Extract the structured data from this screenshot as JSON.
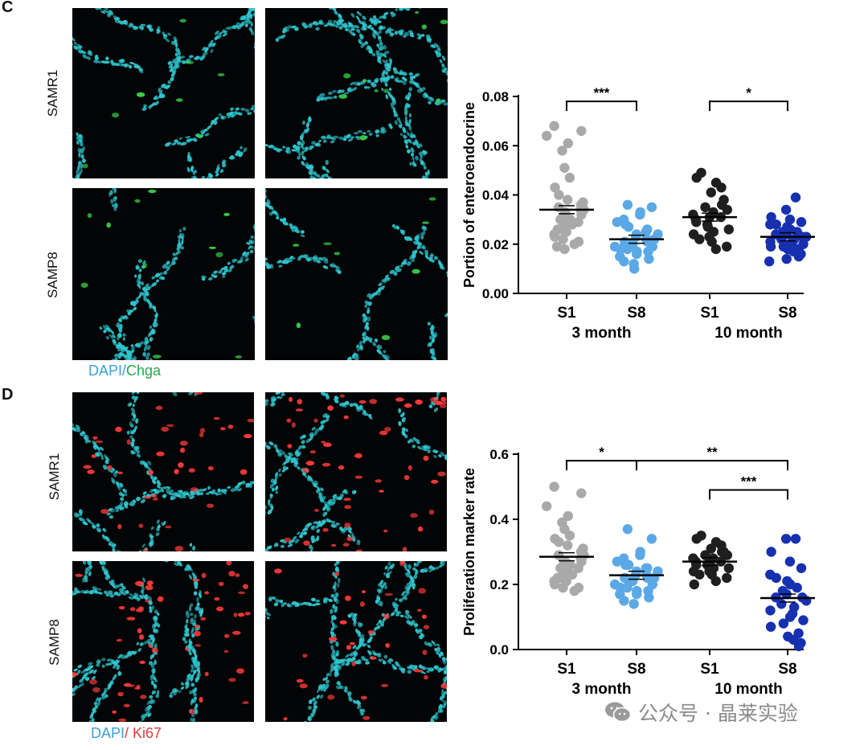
{
  "panels": {
    "c": {
      "letter": "C",
      "row_labels": [
        "SAMR1",
        "SAMP8"
      ],
      "stain_legend": {
        "dapi": "DAPI",
        "separator": "/",
        "marker": "Chga"
      }
    },
    "d": {
      "letter": "D",
      "row_labels": [
        "SAMR1",
        "SAMP8"
      ],
      "stain_legend": {
        "dapi": "DAPI",
        "separator": "/ ",
        "marker": "Ki67"
      }
    }
  },
  "colors": {
    "dapi": "#2fc6cf",
    "chga": "#39d24a",
    "ki67": "#ff3b3b",
    "S1_3month": "#a9a9a9",
    "S8_3month": "#5ba8e6",
    "S1_10month": "#1f1f1f",
    "S8_10month": "#1630b0"
  },
  "chart_data": [
    {
      "type": "scatter",
      "panel": "C",
      "ylabel": "Portion of enteroendocrine",
      "xlabel": "",
      "ylim": [
        0,
        0.08
      ],
      "yticks": [
        "0.00",
        "0.02",
        "0.04",
        "0.06",
        "0.08"
      ],
      "ytick_values": [
        0,
        0.02,
        0.04,
        0.06,
        0.08
      ],
      "categories": [
        "S1",
        "S8",
        "S1",
        "S8"
      ],
      "group_labels": [
        "3 month",
        "10 month"
      ],
      "series": [
        {
          "color": "#a9a9a9",
          "mean": 0.034,
          "values": [
            0.068,
            0.066,
            0.064,
            0.061,
            0.058,
            0.051,
            0.047,
            0.043,
            0.04,
            0.038,
            0.037,
            0.036,
            0.035,
            0.034,
            0.034,
            0.033,
            0.032,
            0.031,
            0.03,
            0.03,
            0.029,
            0.028,
            0.028,
            0.027,
            0.026,
            0.026,
            0.025,
            0.024,
            0.023,
            0.022,
            0.021,
            0.02,
            0.019,
            0.018
          ]
        },
        {
          "color": "#5ba8e6",
          "mean": 0.022,
          "values": [
            0.036,
            0.035,
            0.033,
            0.032,
            0.03,
            0.029,
            0.028,
            0.027,
            0.026,
            0.025,
            0.024,
            0.024,
            0.023,
            0.022,
            0.022,
            0.021,
            0.021,
            0.02,
            0.02,
            0.019,
            0.019,
            0.018,
            0.018,
            0.017,
            0.017,
            0.016,
            0.015,
            0.014,
            0.013,
            0.012,
            0.01
          ]
        },
        {
          "color": "#1f1f1f",
          "mean": 0.031,
          "values": [
            0.049,
            0.047,
            0.045,
            0.043,
            0.041,
            0.038,
            0.036,
            0.035,
            0.034,
            0.033,
            0.032,
            0.031,
            0.031,
            0.03,
            0.029,
            0.028,
            0.027,
            0.026,
            0.025,
            0.024,
            0.023,
            0.022,
            0.021,
            0.019,
            0.018
          ]
        },
        {
          "color": "#1630b0",
          "mean": 0.023,
          "values": [
            0.039,
            0.034,
            0.031,
            0.03,
            0.029,
            0.028,
            0.028,
            0.027,
            0.026,
            0.025,
            0.025,
            0.024,
            0.024,
            0.023,
            0.023,
            0.022,
            0.022,
            0.021,
            0.021,
            0.02,
            0.02,
            0.019,
            0.019,
            0.018,
            0.018,
            0.017,
            0.016,
            0.015,
            0.014,
            0.013
          ]
        }
      ],
      "significance": [
        {
          "from": 0,
          "to": 1,
          "label": "***",
          "level": 0.078
        },
        {
          "from": 2,
          "to": 3,
          "label": "*",
          "level": 0.078
        }
      ]
    },
    {
      "type": "scatter",
      "panel": "D",
      "ylabel": "Proliferation marker rate",
      "xlabel": "",
      "ylim": [
        0,
        0.6
      ],
      "yticks": [
        "0.0",
        "0.2",
        "0.4",
        "0.6"
      ],
      "ytick_values": [
        0,
        0.2,
        0.4,
        0.6
      ],
      "categories": [
        "S1",
        "S8",
        "S1",
        "S8"
      ],
      "group_labels": [
        "3 month",
        "10 month"
      ],
      "series": [
        {
          "color": "#a9a9a9",
          "mean": 0.285,
          "values": [
            0.5,
            0.48,
            0.44,
            0.41,
            0.39,
            0.37,
            0.35,
            0.34,
            0.33,
            0.32,
            0.31,
            0.3,
            0.29,
            0.29,
            0.28,
            0.27,
            0.27,
            0.26,
            0.26,
            0.25,
            0.25,
            0.24,
            0.23,
            0.23,
            0.22,
            0.22,
            0.21,
            0.21,
            0.2,
            0.19,
            0.19,
            0.18
          ]
        },
        {
          "color": "#5ba8e6",
          "mean": 0.228,
          "values": [
            0.37,
            0.34,
            0.3,
            0.29,
            0.28,
            0.27,
            0.26,
            0.26,
            0.25,
            0.25,
            0.24,
            0.24,
            0.23,
            0.23,
            0.22,
            0.22,
            0.22,
            0.21,
            0.21,
            0.2,
            0.2,
            0.19,
            0.19,
            0.18,
            0.18,
            0.17,
            0.17,
            0.16,
            0.15,
            0.14
          ]
        },
        {
          "color": "#1f1f1f",
          "mean": 0.27,
          "values": [
            0.35,
            0.34,
            0.33,
            0.32,
            0.31,
            0.3,
            0.3,
            0.29,
            0.29,
            0.28,
            0.28,
            0.27,
            0.27,
            0.27,
            0.26,
            0.26,
            0.26,
            0.25,
            0.25,
            0.24,
            0.24,
            0.23,
            0.23,
            0.22,
            0.21,
            0.2
          ]
        },
        {
          "color": "#1630b0",
          "mean": 0.158,
          "values": [
            0.34,
            0.34,
            0.3,
            0.27,
            0.25,
            0.23,
            0.22,
            0.21,
            0.2,
            0.19,
            0.18,
            0.17,
            0.16,
            0.16,
            0.15,
            0.14,
            0.13,
            0.12,
            0.11,
            0.1,
            0.09,
            0.08,
            0.07,
            0.05,
            0.04,
            0.03,
            0.02,
            0.01
          ]
        }
      ],
      "significance": [
        {
          "from": 0,
          "to": 1,
          "label": "*",
          "level": 0.58
        },
        {
          "from": 1,
          "to": 3,
          "label": "**",
          "level": 0.58
        },
        {
          "from": 2,
          "to": 3,
          "label": "***",
          "level": 0.49
        }
      ]
    }
  ],
  "watermark": {
    "text": "公众号 · 晶莱实验"
  }
}
